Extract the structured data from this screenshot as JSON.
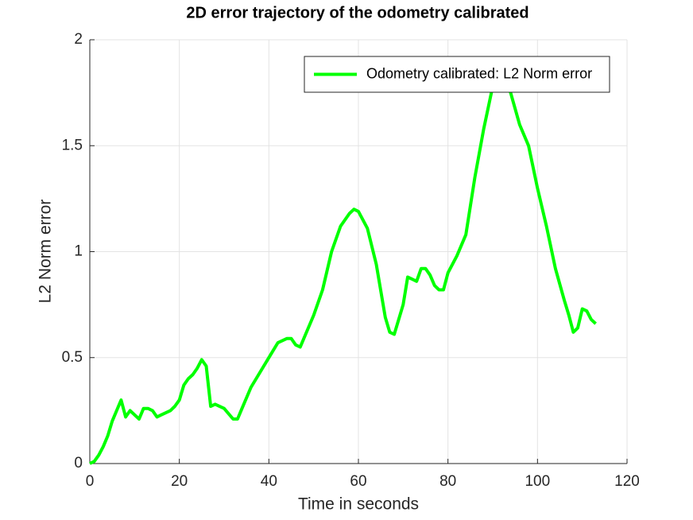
{
  "chart_data": {
    "type": "line",
    "title": "2D error trajectory of the odometry calibrated",
    "x_label": "Time in seconds",
    "y_label": "L2 Norm error",
    "x": [
      0,
      1,
      2,
      3,
      4,
      5,
      6,
      7,
      8,
      9,
      10,
      11,
      12,
      13,
      14,
      15,
      16,
      18,
      19,
      20,
      21,
      22,
      23,
      24,
      25,
      26,
      27,
      28,
      30,
      32,
      33,
      34,
      36,
      38,
      40,
      42,
      44,
      45,
      46,
      47,
      48,
      50,
      52,
      54,
      56,
      58,
      59,
      60,
      62,
      64,
      66,
      67,
      68,
      70,
      71,
      72,
      73,
      74,
      75,
      76,
      77,
      78,
      79,
      80,
      82,
      84,
      86,
      88,
      90,
      92,
      94,
      96,
      98,
      100,
      102,
      104,
      106,
      107,
      108,
      109,
      110,
      111,
      112,
      113
    ],
    "series": [
      {
        "name": "Odometry calibrated: L2 Norm error",
        "color": "#00ff00",
        "values": [
          0,
          0.01,
          0.04,
          0.08,
          0.13,
          0.2,
          0.25,
          0.3,
          0.22,
          0.25,
          0.23,
          0.21,
          0.26,
          0.26,
          0.25,
          0.22,
          0.23,
          0.25,
          0.27,
          0.3,
          0.37,
          0.4,
          0.42,
          0.45,
          0.49,
          0.46,
          0.27,
          0.28,
          0.26,
          0.21,
          0.21,
          0.26,
          0.36,
          0.43,
          0.5,
          0.57,
          0.59,
          0.59,
          0.56,
          0.55,
          0.6,
          0.7,
          0.82,
          1.0,
          1.12,
          1.18,
          1.2,
          1.19,
          1.11,
          0.94,
          0.69,
          0.62,
          0.61,
          0.75,
          0.88,
          0.87,
          0.86,
          0.92,
          0.92,
          0.89,
          0.84,
          0.82,
          0.82,
          0.9,
          0.98,
          1.08,
          1.35,
          1.58,
          1.78,
          1.84,
          1.75,
          1.6,
          1.5,
          1.3,
          1.12,
          0.92,
          0.77,
          0.7,
          0.62,
          0.64,
          0.73,
          0.72,
          0.68,
          0.66
        ]
      }
    ],
    "xlim": [
      0,
      120
    ],
    "xticks": [
      0,
      20,
      40,
      60,
      80,
      100,
      120
    ],
    "ylim": [
      0,
      2
    ],
    "yticks": [
      0,
      0.5,
      1,
      1.5,
      2
    ],
    "grid": true,
    "legend": "northeast"
  }
}
